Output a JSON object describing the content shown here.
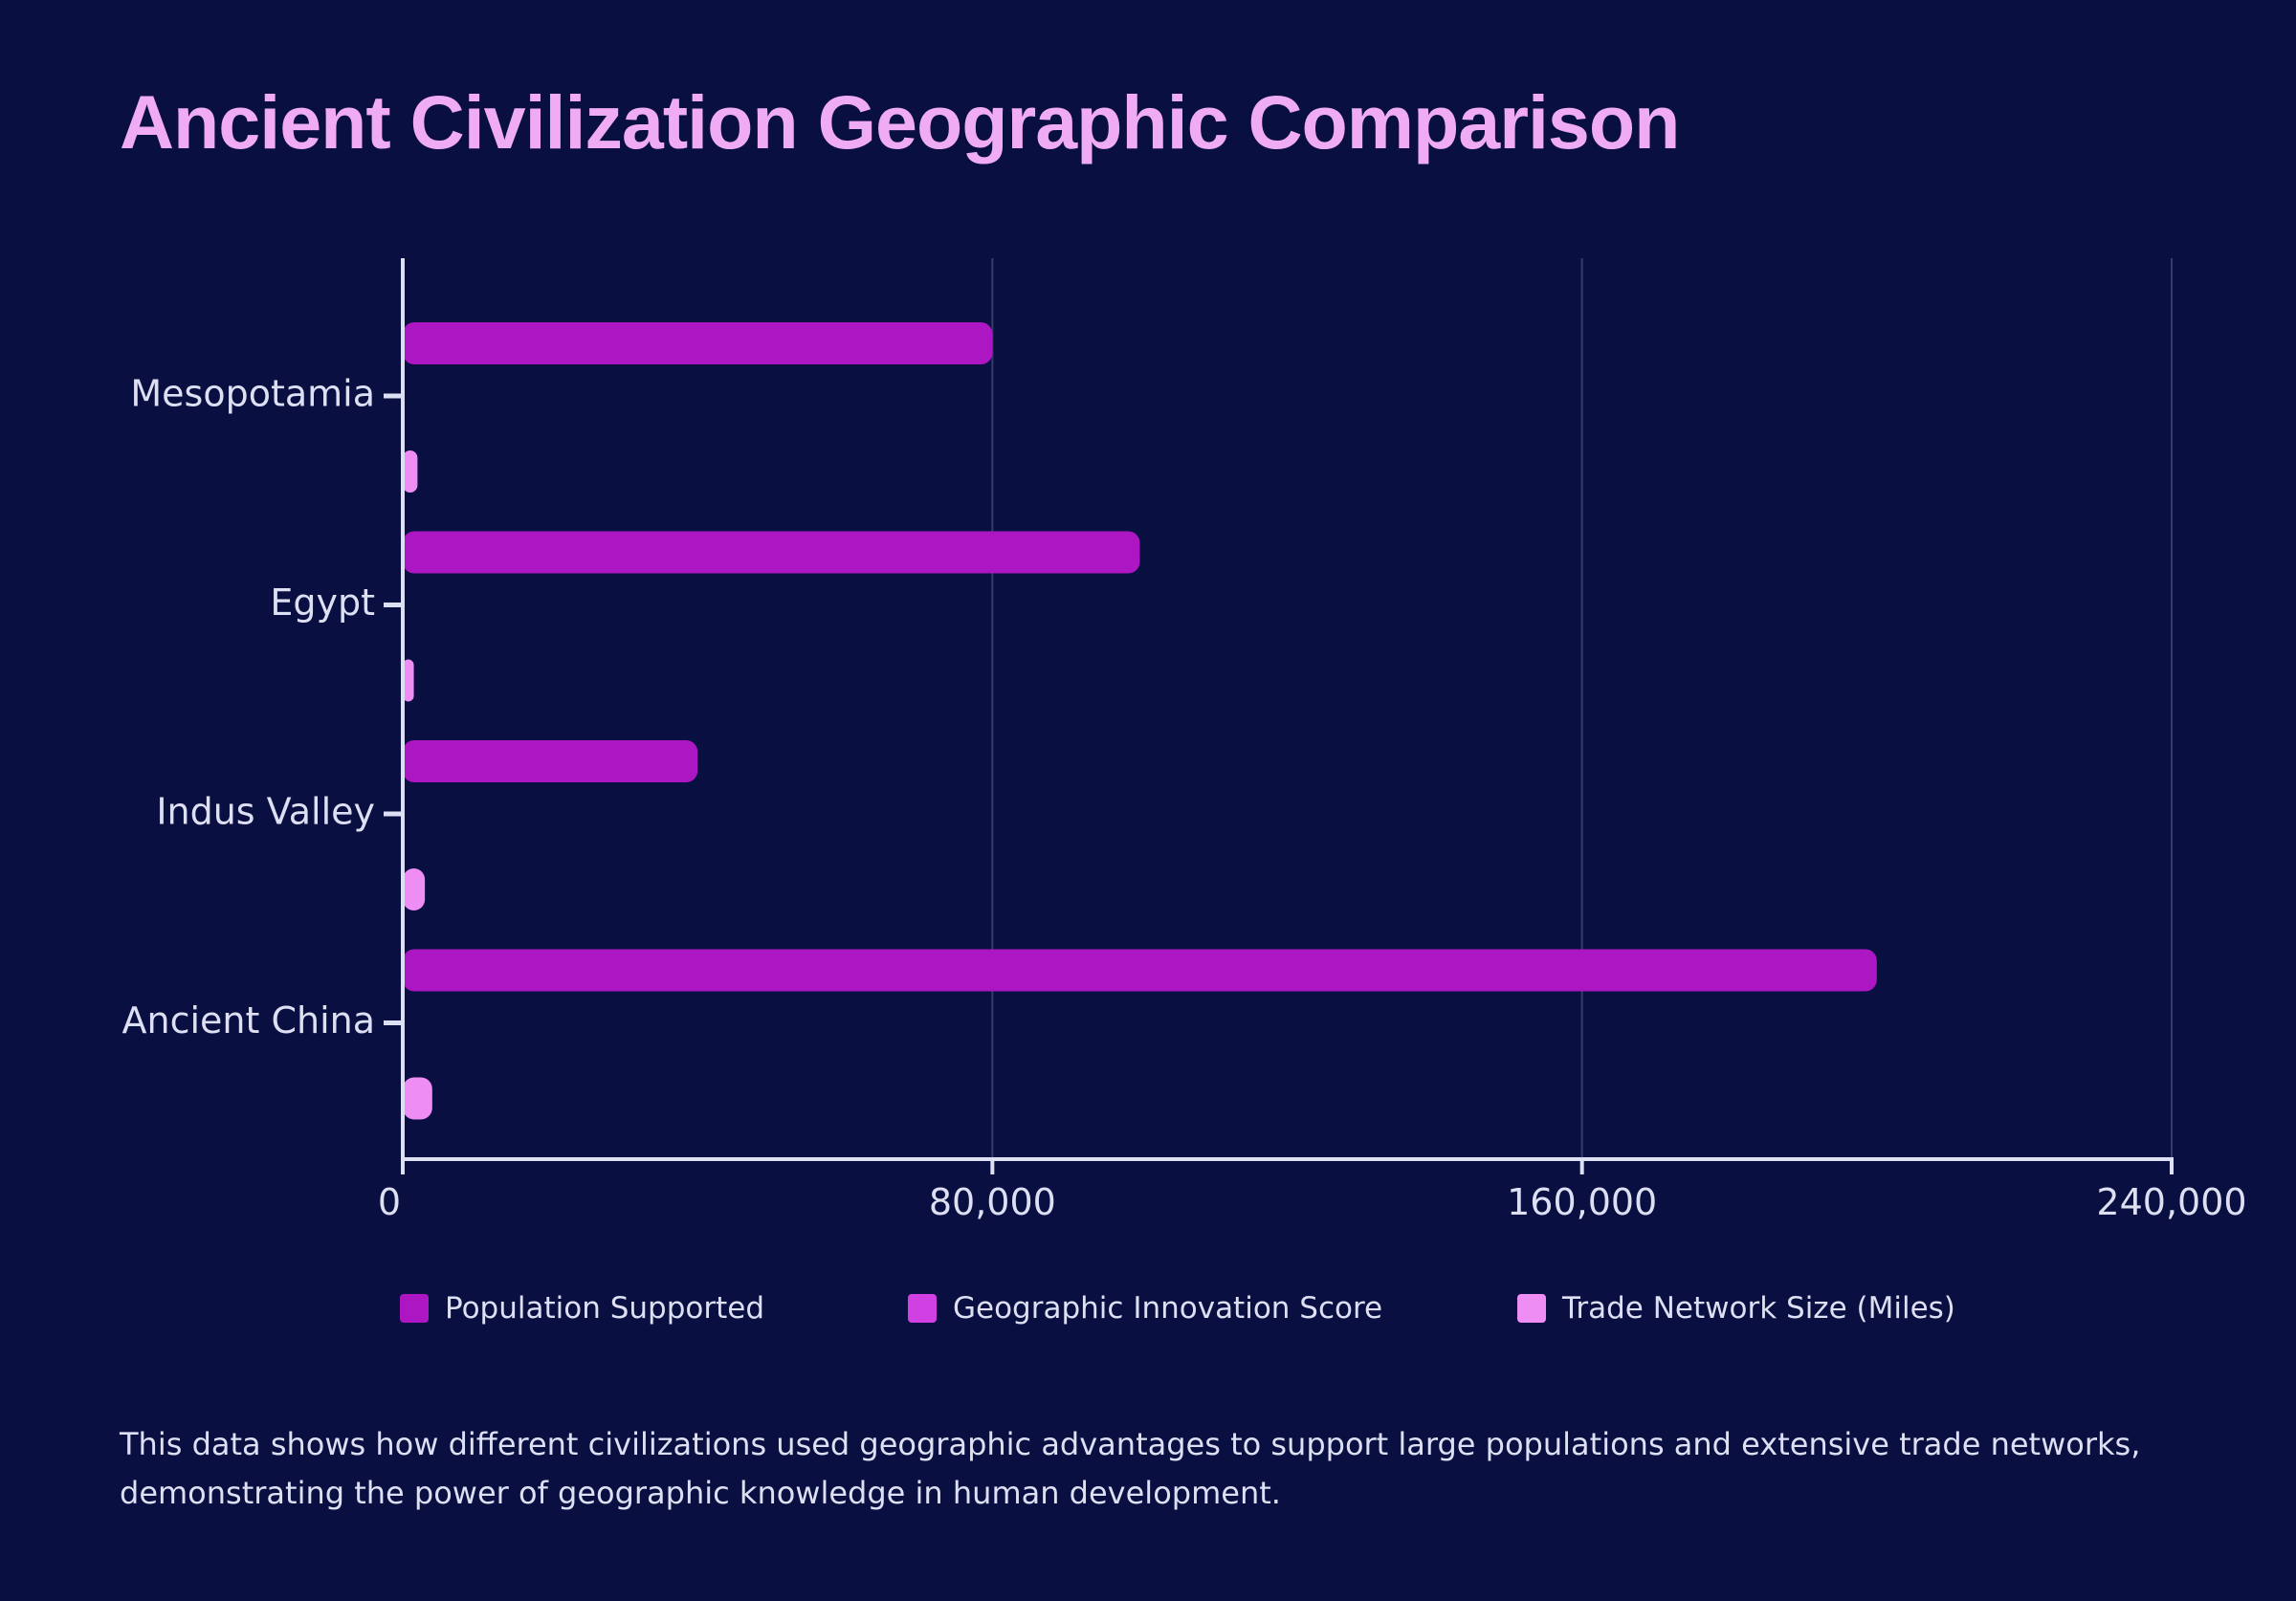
{
  "title": "Ancient Civilization Geographic Comparison",
  "caption": "This data shows how different civilizations used geographic advantages to support large populations and extensive trade networks, demonstrating the power of geographic knowledge in human development.",
  "colors": {
    "background": "#0a0f42",
    "title": "#f0abf5",
    "text": "#dddff2",
    "axis": "#dddff2",
    "grid": "#363c68"
  },
  "chart_data": {
    "type": "bar",
    "orientation": "horizontal",
    "categories": [
      "Mesopotamia",
      "Egypt",
      "Indus Valley",
      "Ancient China"
    ],
    "series": [
      {
        "name": "Population Supported",
        "color": "#ac17c3",
        "values": [
          80000,
          100000,
          40000,
          200000
        ]
      },
      {
        "name": "Geographic Innovation Score",
        "color": "#d140e2",
        "values": [
          85,
          92,
          88,
          95
        ]
      },
      {
        "name": "Trade Network Size (Miles)",
        "color": "#ee8df3",
        "values": [
          2000,
          1500,
          3000,
          4000
        ]
      }
    ],
    "xlim": [
      0,
      240000
    ],
    "xticks": [
      0,
      80000,
      160000,
      240000
    ],
    "xtick_labels": [
      "0",
      "80,000",
      "160,000",
      "240,000"
    ],
    "xlabel": "",
    "ylabel": "",
    "grid": true,
    "legend_position": "bottom"
  }
}
